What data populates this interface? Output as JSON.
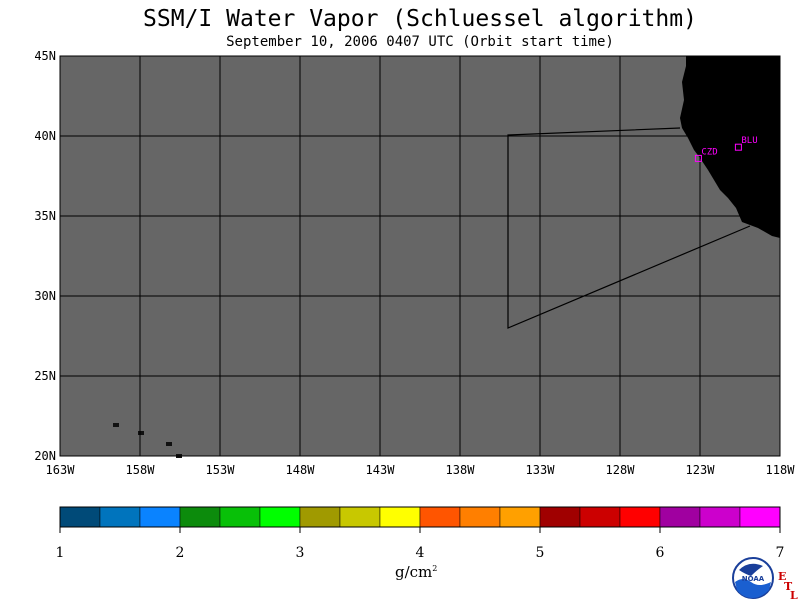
{
  "header": {
    "title": "SSM/I Water Vapor (Schluessel algorithm)",
    "subtitle": "September 10, 2006  0407 UTC  (Orbit start time)"
  },
  "map": {
    "lon_labels": [
      "163W",
      "158W",
      "153W",
      "148W",
      "143W",
      "138W",
      "133W",
      "128W",
      "123W",
      "118W"
    ],
    "lat_labels": [
      "45N",
      "40N",
      "35N",
      "30N",
      "25N",
      "20N"
    ],
    "stations": [
      {
        "id": "CZD",
        "lon": -123.1,
        "lat": 38.6
      },
      {
        "id": "BLU",
        "lon": -120.6,
        "lat": 39.3
      }
    ],
    "colors": {
      "no_data": "#666666",
      "land": "#000000",
      "grid": "#000000"
    }
  },
  "colorbar": {
    "ticks": [
      "1",
      "2",
      "3",
      "4",
      "5",
      "6",
      "7"
    ],
    "unit": "g/cm²",
    "colors": [
      "#004a78",
      "#0074bd",
      "#0a83ff",
      "#0c8b0c",
      "#08c008",
      "#00ff00",
      "#a09a00",
      "#c8c800",
      "#ffff00",
      "#ff5500",
      "#ff7f00",
      "#ffa000",
      "#a00000",
      "#cc0000",
      "#ff0000",
      "#a000a0",
      "#cc00cc",
      "#ff00ff"
    ]
  },
  "logos": {
    "noaa": "NOAA",
    "etl": [
      "E",
      "T",
      "L"
    ]
  }
}
